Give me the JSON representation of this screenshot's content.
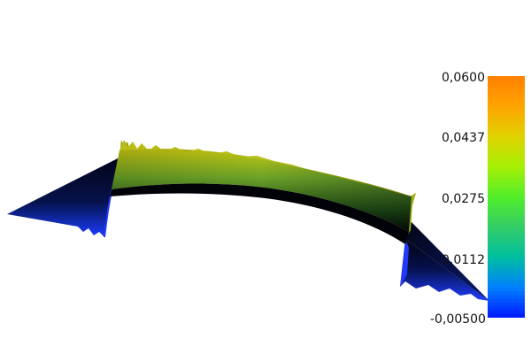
{
  "colorbar": {
    "tick_labels": [
      "0,0600",
      "0,0437",
      "0,0275",
      "0,0112",
      "-0,00500"
    ],
    "range": [
      -0.005,
      0.06
    ],
    "colormap": [
      "#0019ff",
      "#0080ff",
      "#00bfa0",
      "#33cc66",
      "#52ee2a",
      "#a6ef05",
      "#e0d200",
      "#ffa400",
      "#ff8000"
    ]
  },
  "scene": {
    "object": "deformed-beam",
    "colors": {
      "low": "#0a2dff",
      "dark": "#040620",
      "mid": "#2a6a22",
      "high": "#b8c010"
    }
  }
}
